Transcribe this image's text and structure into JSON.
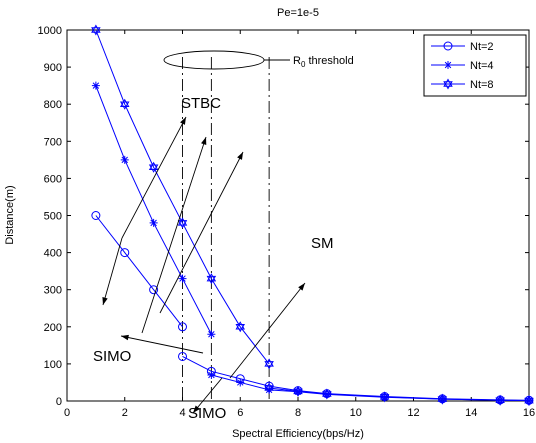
{
  "chart_data": {
    "type": "line",
    "title": "Pe=1e-5",
    "xlabel": "Spectral Efficiency(bps/Hz)",
    "ylabel": "Distance(m)",
    "xlim": [
      0,
      16
    ],
    "ylim": [
      0,
      1000
    ],
    "xticks": [
      0,
      2,
      4,
      6,
      8,
      10,
      12,
      14,
      16
    ],
    "yticks": [
      0,
      100,
      200,
      300,
      400,
      500,
      600,
      700,
      800,
      900,
      1000
    ],
    "grid": false,
    "legend_position": "top-right",
    "color": "#0000ff",
    "series": [
      {
        "name": "Nt=2",
        "marker": "circle",
        "segments": [
          [
            [
              1,
              500
            ],
            [
              2,
              400
            ],
            [
              3,
              300
            ],
            [
              4,
              200
            ]
          ],
          [
            [
              4,
              120
            ],
            [
              5,
              80
            ],
            [
              6,
              60
            ],
            [
              7,
              40
            ],
            [
              8,
              28
            ],
            [
              9,
              20
            ],
            [
              11,
              12
            ],
            [
              13,
              6
            ],
            [
              15,
              3
            ],
            [
              16,
              2
            ]
          ]
        ]
      },
      {
        "name": "Nt=4",
        "marker": "asterisk",
        "segments": [
          [
            [
              1,
              850
            ],
            [
              2,
              650
            ],
            [
              3,
              480
            ],
            [
              4,
              330
            ],
            [
              5,
              180
            ]
          ],
          [
            [
              5,
              70
            ],
            [
              6,
              50
            ],
            [
              7,
              30
            ],
            [
              8,
              25
            ],
            [
              9,
              18
            ],
            [
              11,
              10
            ],
            [
              13,
              5
            ],
            [
              15,
              2
            ],
            [
              16,
              1
            ]
          ]
        ]
      },
      {
        "name": "Nt=8",
        "marker": "star",
        "segments": [
          [
            [
              1,
              1000
            ],
            [
              2,
              800
            ],
            [
              3,
              630
            ],
            [
              4,
              480
            ],
            [
              5,
              330
            ],
            [
              6,
              200
            ],
            [
              7,
              100
            ]
          ],
          [
            [
              7,
              35
            ],
            [
              8,
              26
            ],
            [
              9,
              19
            ],
            [
              11,
              11
            ],
            [
              13,
              5
            ],
            [
              15,
              2
            ],
            [
              16,
              1
            ]
          ]
        ]
      }
    ],
    "threshold_lines_x": [
      4,
      5,
      7
    ],
    "annotations": {
      "threshold": {
        "prefix": "R",
        "sub": "0",
        "suffix": " threshold"
      },
      "stbc": "STBC",
      "simo_left": "SIMO",
      "simo_bottom": "SIMO",
      "sm": "SM"
    }
  }
}
